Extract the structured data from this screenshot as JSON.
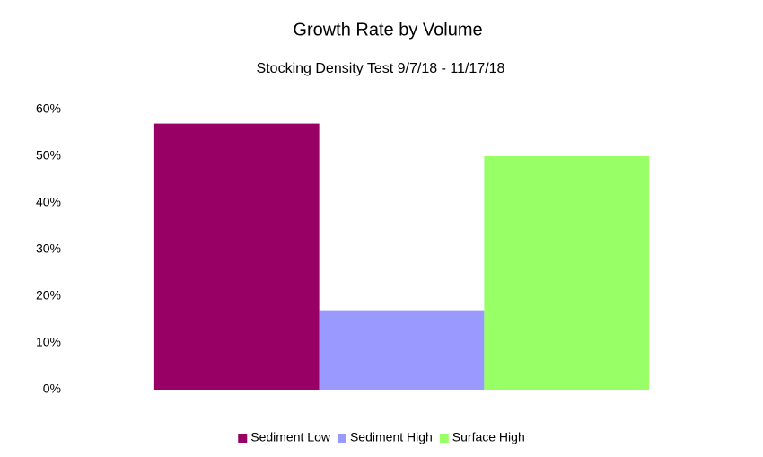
{
  "chart_data": {
    "type": "bar",
    "title": "Growth Rate by Volume",
    "subtitle": "Stocking Density Test 9/7/18 - 11/17/18",
    "categories": [
      null
    ],
    "series": [
      {
        "name": "Sediment Low",
        "color": "#990066",
        "values": [
          57
        ]
      },
      {
        "name": "Sediment High",
        "color": "#9999ff",
        "values": [
          17
        ]
      },
      {
        "name": "Surface High",
        "color": "#99ff66",
        "values": [
          50
        ]
      }
    ],
    "ylim": [
      0,
      60
    ],
    "yticks": [
      {
        "value": 0,
        "label": "0%"
      },
      {
        "value": 10,
        "label": "10%"
      },
      {
        "value": 20,
        "label": "20%"
      },
      {
        "value": 30,
        "label": "30%"
      },
      {
        "value": 40,
        "label": "40%"
      },
      {
        "value": 50,
        "label": "50%"
      },
      {
        "value": 60,
        "label": "60%"
      }
    ],
    "grid": false,
    "legend": "bottom"
  }
}
